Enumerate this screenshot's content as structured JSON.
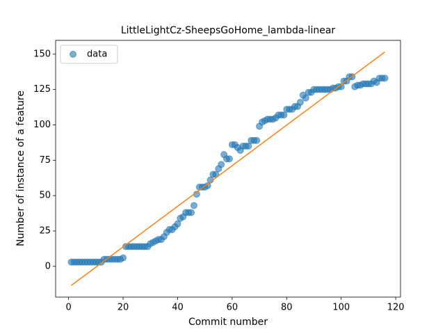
{
  "chart_data": {
    "type": "scatter",
    "title": "LittleLightCz-SheepsGoHome_lambda-linear",
    "x_label": "Commit number",
    "y_label": "Number of instance of a feature",
    "x": [
      1,
      2,
      3,
      4,
      5,
      6,
      7,
      8,
      9,
      10,
      11,
      12,
      13,
      14,
      15,
      16,
      17,
      18,
      19,
      20,
      21,
      22,
      23,
      24,
      25,
      26,
      27,
      28,
      29,
      30,
      31,
      32,
      33,
      34,
      35,
      36,
      37,
      38,
      39,
      40,
      41,
      42,
      43,
      44,
      45,
      46,
      47,
      48,
      49,
      50,
      51,
      52,
      53,
      54,
      55,
      56,
      57,
      58,
      59,
      60,
      61,
      62,
      63,
      64,
      65,
      66,
      67,
      68,
      69,
      70,
      71,
      72,
      73,
      74,
      75,
      76,
      77,
      78,
      79,
      80,
      81,
      82,
      83,
      84,
      85,
      86,
      87,
      88,
      89,
      90,
      91,
      92,
      93,
      94,
      95,
      96,
      97,
      98,
      99,
      100,
      101,
      102,
      103,
      104,
      105,
      106,
      107,
      108,
      109,
      110,
      111,
      112,
      113,
      114,
      115,
      116
    ],
    "series": [
      {
        "name": "data",
        "color": "#1f77b4",
        "values": [
          3,
          3,
          3,
          3,
          3,
          3,
          3,
          3,
          3,
          3,
          3,
          3,
          5,
          5,
          5,
          5,
          5,
          5,
          5,
          6,
          14,
          14,
          14,
          14,
          14,
          14,
          14,
          14,
          14,
          16,
          17,
          18,
          19,
          19,
          21,
          24,
          26,
          26,
          28,
          30,
          34,
          35,
          38,
          38,
          38,
          43,
          51,
          56,
          56,
          56,
          57,
          61,
          65,
          65,
          69,
          72,
          79,
          76,
          76,
          86,
          86,
          84,
          82,
          85,
          85,
          85,
          89,
          89,
          89,
          99,
          102,
          103,
          104,
          104,
          104,
          105,
          107,
          107,
          107,
          111,
          111,
          111,
          113,
          113,
          116,
          121,
          119,
          123,
          123,
          125,
          125,
          125,
          125,
          125,
          125,
          125,
          126,
          126,
          127,
          127,
          131,
          131,
          134,
          134,
          127,
          128,
          128,
          129,
          129,
          129,
          129,
          131,
          130,
          133,
          133,
          133
        ]
      },
      {
        "type": "line",
        "color": "#ff7f0e",
        "x": [
          1,
          116
        ],
        "values": [
          -13.5,
          151.5
        ]
      }
    ],
    "xlim": [
      -4.75,
      121.75
    ],
    "xticks": [
      0,
      20,
      40,
      60,
      80,
      100,
      120
    ],
    "ylim": [
      -21.75,
      159.75
    ],
    "yticks": [
      0,
      25,
      50,
      75,
      100,
      125,
      150
    ],
    "legend": "upper left"
  }
}
